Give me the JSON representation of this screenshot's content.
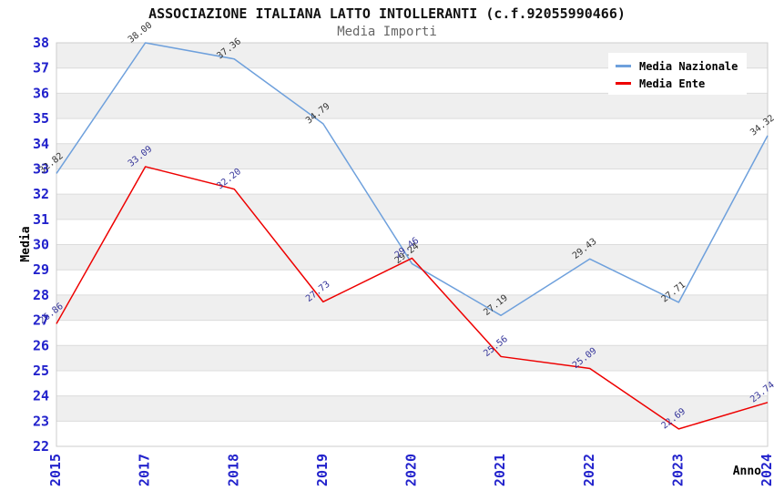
{
  "page": {
    "title": "ASSOCIAZIONE ITALIANA LATTO INTOLLERANTI (c.f.92055990466)",
    "subtitle": "Media Importi"
  },
  "legend": {
    "items": [
      {
        "label": "Media Nazionale",
        "color": "#6EA0DC"
      },
      {
        "label": "Media Ente",
        "color": "#EE0000"
      }
    ]
  },
  "colors": {
    "tick_label": "#2222CC",
    "axis_text": "#000000",
    "grid_line": "#DCDCDC",
    "plot_border": "#CCCCCC",
    "band_even": "#FFFFFF",
    "band_odd": "#EFEFEF",
    "background": "#FFFFFF"
  },
  "chart_data": {
    "type": "line",
    "title": "ASSOCIAZIONE ITALIANA LATTO INTOLLERANTI (c.f.92055990466)",
    "subtitle": "Media Importi",
    "x": [
      "2015",
      "2017",
      "2018",
      "2019",
      "2020",
      "2021",
      "2022",
      "2023",
      "2024"
    ],
    "series": [
      {
        "name": "Media Nazionale",
        "color": "#6EA0DC",
        "label_color": "#333333",
        "values": [
          32.82,
          38.0,
          37.36,
          34.79,
          29.24,
          27.19,
          29.43,
          27.71,
          34.32
        ]
      },
      {
        "name": "Media Ente",
        "color": "#EE0000",
        "label_color": "#333399",
        "values": [
          26.86,
          33.09,
          32.2,
          27.73,
          29.46,
          25.56,
          25.09,
          22.69,
          23.74
        ]
      }
    ],
    "ylabel": "Media",
    "xlabel": "Anno",
    "ylim": [
      22,
      38
    ],
    "yticks": [
      22,
      23,
      24,
      25,
      26,
      27,
      28,
      29,
      30,
      31,
      32,
      33,
      34,
      35,
      36,
      37,
      38
    ],
    "grid": true,
    "banded_background": true,
    "legend_position": "top-right",
    "value_labels_rotation_deg": -38
  }
}
